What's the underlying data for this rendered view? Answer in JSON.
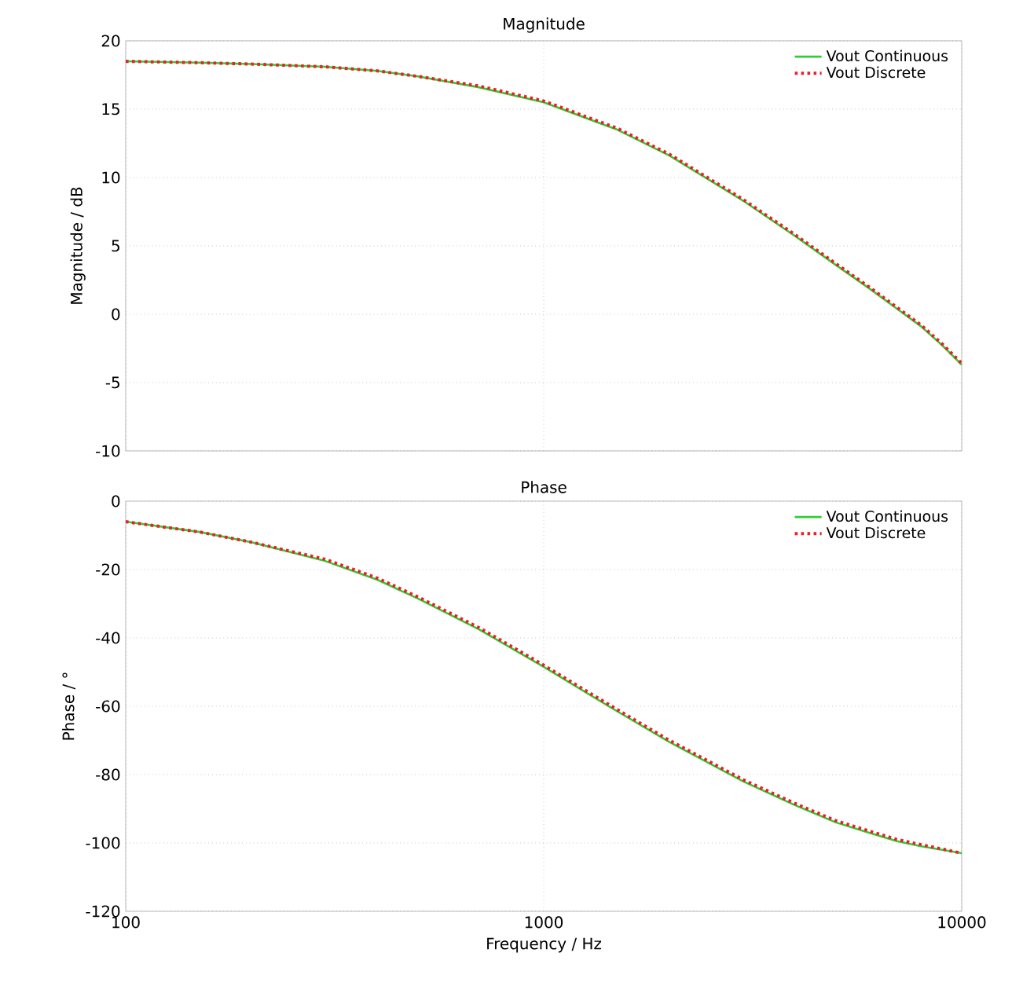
{
  "chart_data": [
    {
      "type": "line",
      "title": "Magnitude",
      "ylabel": "Magnitude / dB",
      "x": [
        100,
        150,
        200,
        300,
        400,
        500,
        700,
        1000,
        1500,
        2000,
        3000,
        4000,
        5000,
        6000,
        7000,
        8000,
        9000,
        10000
      ],
      "series": [
        {
          "name": "Vout Continuous",
          "color": "#33cc33",
          "line_style": "solid",
          "values": [
            18.5,
            18.4,
            18.3,
            18.1,
            17.8,
            17.4,
            16.6,
            15.5,
            13.5,
            11.6,
            8.3,
            5.7,
            3.6,
            1.9,
            0.4,
            -0.9,
            -2.3,
            -3.7
          ]
        },
        {
          "name": "Vout Discrete",
          "color": "#e8202a",
          "line_style": "dotted",
          "values": [
            18.5,
            18.4,
            18.3,
            18.1,
            17.8,
            17.4,
            16.7,
            15.6,
            13.6,
            11.7,
            8.4,
            5.8,
            3.7,
            2.0,
            0.5,
            -0.8,
            -2.2,
            -3.6
          ]
        }
      ],
      "log": "x",
      "xlim": [
        100,
        10000
      ],
      "xticks": [
        100,
        1000,
        10000
      ],
      "ylim": [
        -10,
        20
      ],
      "yticks": [
        -10,
        -5,
        0,
        5,
        10,
        15,
        20
      ],
      "grid": true,
      "legend": "top right",
      "tick_labels": "y"
    },
    {
      "type": "line",
      "title": "Phase",
      "xlabel": "Frequency / Hz",
      "ylabel": "Phase / °",
      "x": [
        100,
        150,
        200,
        300,
        400,
        500,
        700,
        1000,
        1500,
        2000,
        3000,
        4000,
        5000,
        6000,
        7000,
        8000,
        10000
      ],
      "series": [
        {
          "name": "Vout Continuous",
          "color": "#33cc33",
          "line_style": "solid",
          "values": [
            -6,
            -9,
            -12,
            -17.5,
            -23,
            -28.5,
            -37.5,
            -48.5,
            -61.5,
            -70.5,
            -82,
            -89,
            -94,
            -97,
            -99.5,
            -101,
            -103
          ]
        },
        {
          "name": "Vout Discrete",
          "color": "#e8202a",
          "line_style": "dotted",
          "values": [
            -6,
            -9,
            -12,
            -17,
            -22.5,
            -28,
            -37,
            -48,
            -61,
            -70,
            -81.5,
            -88.5,
            -93.5,
            -96.5,
            -99,
            -100.5,
            -103
          ]
        }
      ],
      "log": "x",
      "xlim": [
        100,
        10000
      ],
      "xticks": [
        100,
        1000,
        10000
      ],
      "ylim": [
        -120,
        0
      ],
      "yticks": [
        -120,
        -100,
        -80,
        -60,
        -40,
        -20,
        0
      ],
      "grid": true,
      "legend": "top right"
    }
  ]
}
